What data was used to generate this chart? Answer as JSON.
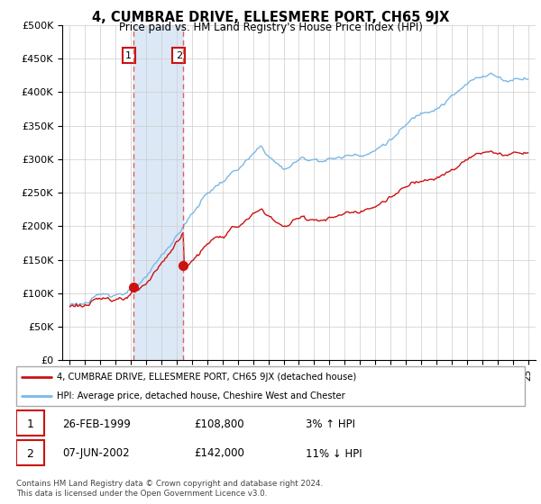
{
  "title": "4, CUMBRAE DRIVE, ELLESMERE PORT, CH65 9JX",
  "subtitle": "Price paid vs. HM Land Registry's House Price Index (HPI)",
  "ylabel_ticks": [
    "£0",
    "£50K",
    "£100K",
    "£150K",
    "£200K",
    "£250K",
    "£300K",
    "£350K",
    "£400K",
    "£450K",
    "£500K"
  ],
  "ytick_values": [
    0,
    50000,
    100000,
    150000,
    200000,
    250000,
    300000,
    350000,
    400000,
    450000,
    500000
  ],
  "xlim_start": 1994.5,
  "xlim_end": 2025.5,
  "ylim": [
    0,
    500000
  ],
  "hpi_color": "#7ab8e8",
  "price_color": "#cc1111",
  "shade_color": "#dce8f5",
  "vline_color": "#e06060",
  "transaction1_x": 1999.15,
  "transaction1_y": 108800,
  "transaction2_x": 2002.44,
  "transaction2_y": 142000,
  "legend_label_price": "4, CUMBRAE DRIVE, ELLESMERE PORT, CH65 9JX (detached house)",
  "legend_label_hpi": "HPI: Average price, detached house, Cheshire West and Chester",
  "footer": "Contains HM Land Registry data © Crown copyright and database right 2024.\nThis data is licensed under the Open Government Licence v3.0.",
  "table_rows": [
    {
      "num": 1,
      "date": "26-FEB-1999",
      "price": "£108,800",
      "hpi": "3% ↑ HPI"
    },
    {
      "num": 2,
      "date": "07-JUN-2002",
      "price": "£142,000",
      "hpi": "11% ↓ HPI"
    }
  ]
}
